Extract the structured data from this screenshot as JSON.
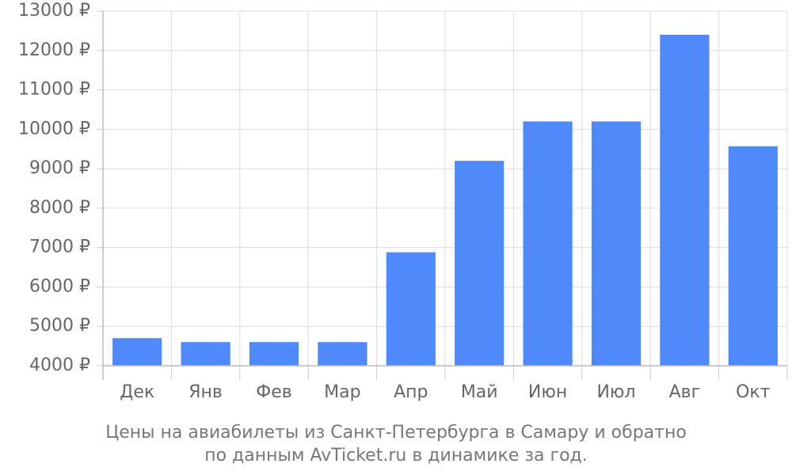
{
  "chart_data": {
    "type": "bar",
    "categories": [
      "Дек",
      "Янв",
      "Фев",
      "Мар",
      "Апр",
      "Май",
      "Июн",
      "Июл",
      "Авг",
      "Окт"
    ],
    "values": [
      4700,
      4600,
      4600,
      4600,
      6880,
      9200,
      10200,
      10200,
      12400,
      9570
    ],
    "ylim": [
      4000,
      13000
    ],
    "ytick_step": 1000,
    "y_unit": "₽",
    "grid": true,
    "bar_color": "#4f89fa",
    "title_lines": [
      "Цены на авиабилеты из Санкт-Петербурга в Самару и обратно",
      "по данным AvTicket.ru в динамике за год."
    ]
  }
}
